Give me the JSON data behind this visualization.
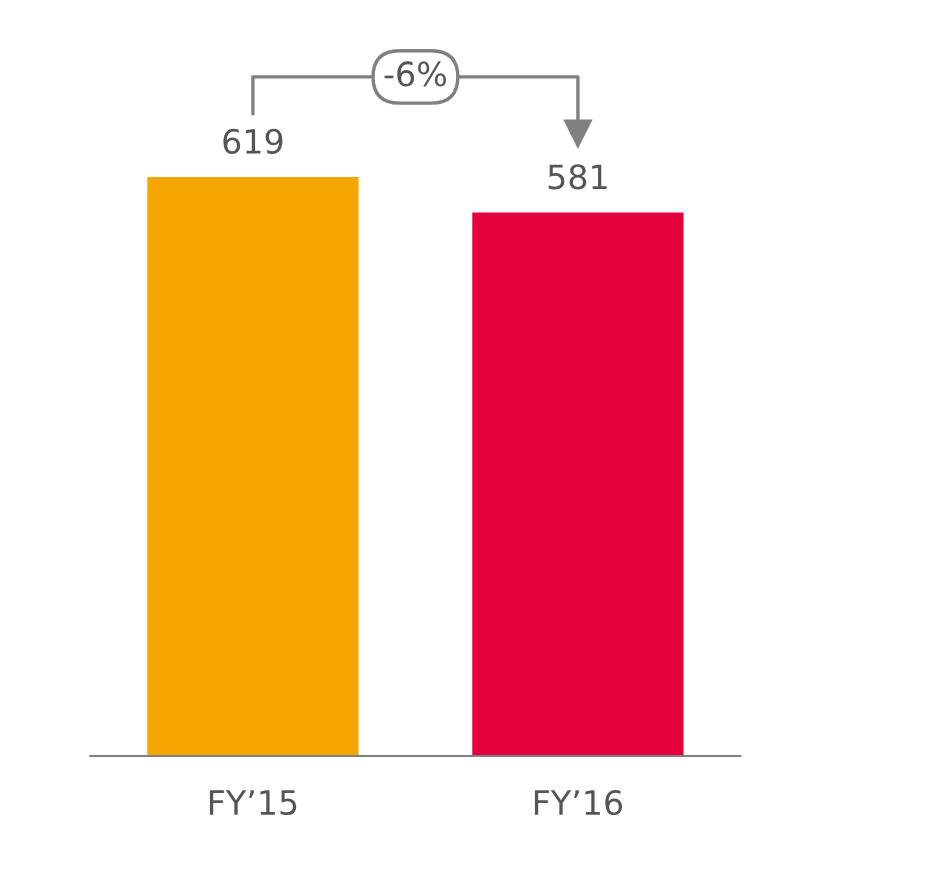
{
  "chart_data": {
    "type": "bar",
    "categories": [
      "FY’15",
      "FY’16"
    ],
    "values": [
      619,
      581
    ],
    "colors": [
      "#f5a500",
      "#e4003b"
    ],
    "data_labels": true,
    "grid": false,
    "legend": false,
    "annotations": [
      "-6%"
    ]
  }
}
